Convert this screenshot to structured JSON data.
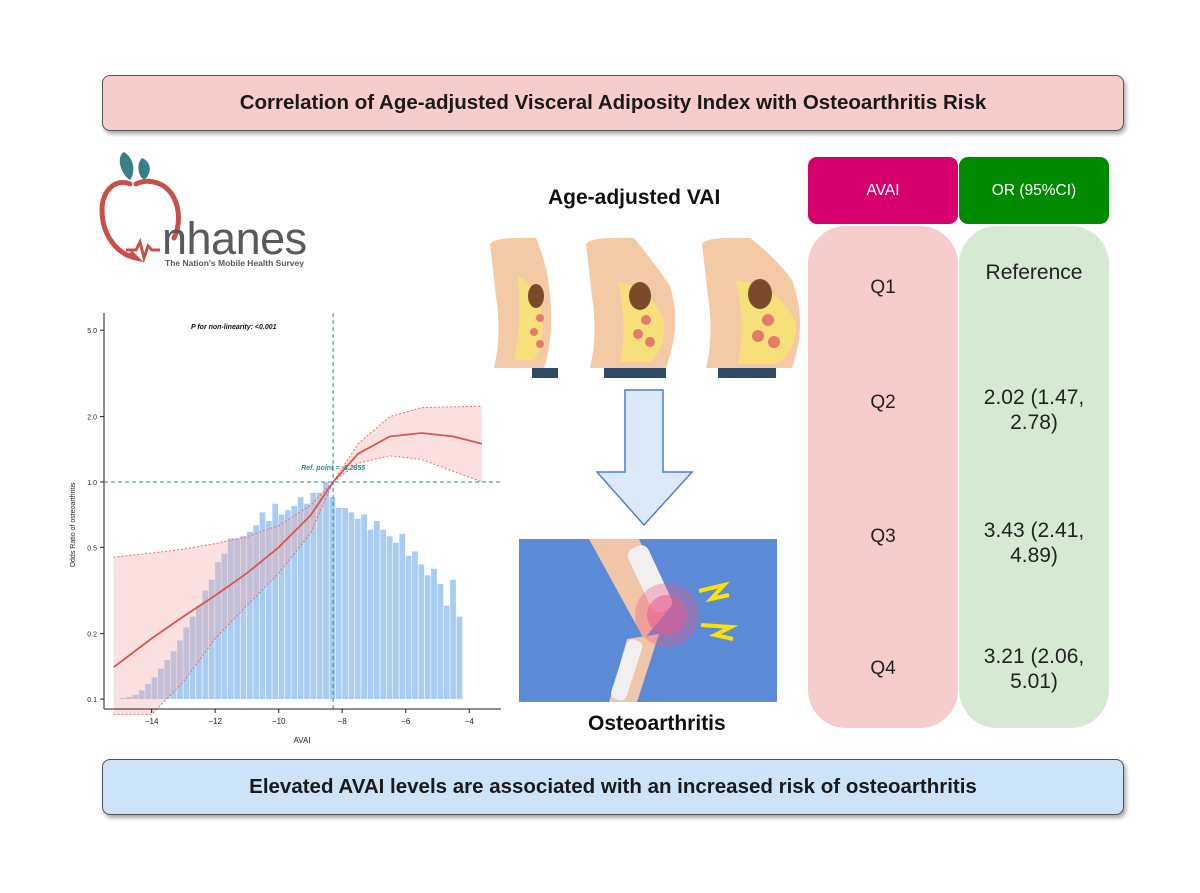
{
  "title": "Correlation of Age-adjusted Visceral Adiposity Index with Osteoarthritis Risk",
  "conclusion": "Elevated AVAI levels are associated with an increased risk of osteoarthritis",
  "logo": {
    "name": "nhanes",
    "tagline": "The Nation's Mobile Health Survey"
  },
  "center": {
    "top_label": "Age-adjusted VAI",
    "bottom_label": "Osteoarthritis"
  },
  "table": {
    "header_left": "AVAI",
    "header_right": "OR (95%CI)",
    "rows": [
      {
        "q": "Q1",
        "or": "Reference"
      },
      {
        "q": "Q2",
        "or_line1": "2.02 (1.47,",
        "or_line2": "2.78)"
      },
      {
        "q": "Q3",
        "or_line1": "3.43 (2.41,",
        "or_line2": "4.89)"
      },
      {
        "q": "Q4",
        "or_line1": "3.21 (2.06,",
        "or_line2": "5.01)"
      }
    ]
  },
  "colors": {
    "header_left": "#d6006e",
    "header_right": "#008a00",
    "col_left": "#f6cccc",
    "col_right": "#d6ead3"
  },
  "chart_data": {
    "type": "line",
    "title": "P for non-linearity: <0.001",
    "xlabel": "AVAI",
    "ylabel": "Odds Ratio of osteoarthritis",
    "log_y": true,
    "xlim": [
      -15.5,
      -3.0
    ],
    "ylim": [
      0.09,
      6.0
    ],
    "xticks": [
      -14,
      -12,
      -10,
      -8,
      -6,
      -4
    ],
    "yticks": [
      0.1,
      0.2,
      0.5,
      1.0,
      2.0,
      5.0
    ],
    "reference_point": {
      "label": "Ref. point = -8.2855",
      "x": -8.2855,
      "y": 1.0
    },
    "or_curve": {
      "x": [
        -15.2,
        -14,
        -13,
        -12,
        -11,
        -10,
        -9,
        -8.2855,
        -7.5,
        -6.5,
        -5.5,
        -4.5,
        -3.6
      ],
      "y": [
        0.14,
        0.19,
        0.24,
        0.3,
        0.38,
        0.5,
        0.7,
        1.0,
        1.35,
        1.62,
        1.68,
        1.62,
        1.5
      ]
    },
    "ci_upper": {
      "x": [
        -15.2,
        -14,
        -13,
        -12,
        -11,
        -10,
        -9,
        -8.2855,
        -7.5,
        -6.5,
        -5.5,
        -4.5,
        -3.6
      ],
      "y": [
        0.45,
        0.47,
        0.49,
        0.52,
        0.56,
        0.63,
        0.78,
        1.0,
        1.5,
        2.0,
        2.2,
        2.22,
        2.23
      ]
    },
    "ci_lower": {
      "x": [
        -15.2,
        -14,
        -13,
        -12,
        -11,
        -10,
        -9,
        -8.2855,
        -7.5,
        -6.5,
        -5.5,
        -4.5,
        -3.6
      ],
      "y": [
        0.085,
        0.085,
        0.12,
        0.19,
        0.27,
        0.38,
        0.58,
        1.0,
        1.22,
        1.32,
        1.27,
        1.12,
        1.0
      ]
    },
    "histogram": {
      "x_start": -15.0,
      "bin_width": 0.2,
      "relative_heights": [
        0.005,
        0.01,
        0.02,
        0.04,
        0.07,
        0.1,
        0.14,
        0.18,
        0.22,
        0.27,
        0.33,
        0.38,
        0.43,
        0.5,
        0.55,
        0.63,
        0.67,
        0.74,
        0.74,
        0.75,
        0.77,
        0.8,
        0.86,
        0.82,
        0.9,
        0.85,
        0.87,
        0.89,
        0.93,
        0.9,
        0.95,
        0.95,
        1.0,
        0.93,
        0.88,
        0.88,
        0.86,
        0.83,
        0.85,
        0.78,
        0.82,
        0.78,
        0.75,
        0.72,
        0.76,
        0.66,
        0.68,
        0.62,
        0.57,
        0.6,
        0.53,
        0.43,
        0.55,
        0.38
      ]
    }
  }
}
